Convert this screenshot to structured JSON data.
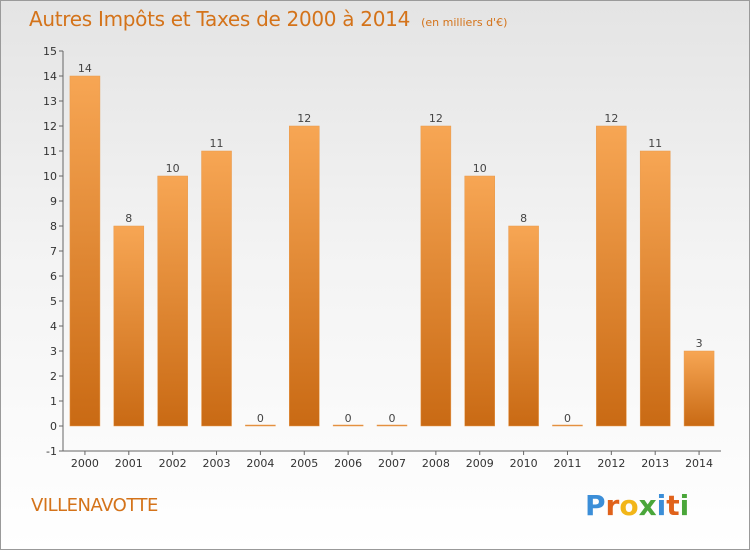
{
  "commune": "VILLENAVOTTE",
  "brand": {
    "letters": [
      "P",
      "r",
      "o",
      "x",
      "i",
      "t",
      "i"
    ],
    "colors": [
      "#3b8ed8",
      "#e0621b",
      "#f2b619",
      "#4aa63a",
      "#3b8ed8",
      "#e0621b",
      "#4aa63a"
    ]
  },
  "colors": {
    "bar_top": "#f7a654",
    "bar_bottom": "#c96a14",
    "title": "#d4731a"
  },
  "chart_data": {
    "type": "bar",
    "title": "Autres Impôts et Taxes de 2000 à 2014",
    "subtitle": "(en milliers d'€)",
    "categories": [
      "2000",
      "2001",
      "2002",
      "2003",
      "2004",
      "2005",
      "2006",
      "2007",
      "2008",
      "2009",
      "2010",
      "2011",
      "2012",
      "2013",
      "2014"
    ],
    "values": [
      14,
      8,
      10,
      11,
      0,
      12,
      0,
      0,
      12,
      10,
      8,
      0,
      12,
      11,
      3
    ],
    "ylim": [
      -1,
      15
    ],
    "yticks": [
      "-1",
      "0",
      "1",
      "2",
      "3",
      "4",
      "5",
      "6",
      "7",
      "8",
      "9",
      "10",
      "11",
      "12",
      "13",
      "14",
      "15"
    ],
    "grid": false,
    "legend": "none"
  }
}
